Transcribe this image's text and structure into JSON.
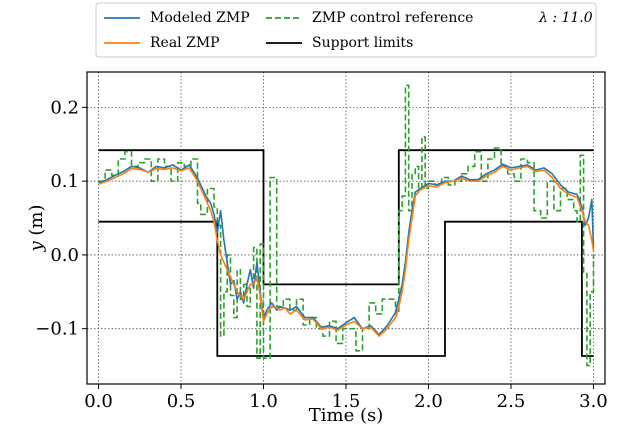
{
  "chart_data": {
    "type": "line",
    "xlabel": "Time (s)",
    "ylabel_var": "y",
    "ylabel_unit": " (m)",
    "xlim": [
      -0.07,
      3.07
    ],
    "ylim": [
      -0.175,
      0.248
    ],
    "xticks": [
      0.0,
      0.5,
      1.0,
      1.5,
      2.0,
      2.5,
      3.0
    ],
    "xtick_labels": [
      "0.0",
      "0.5",
      "1.0",
      "1.5",
      "2.0",
      "2.5",
      "3.0"
    ],
    "yticks": [
      -0.1,
      0.0,
      0.1,
      0.2
    ],
    "ytick_labels": [
      "−0.1",
      "0.0",
      "0.1",
      "0.2"
    ],
    "grid": true,
    "legend_position": "top",
    "annotation": "λ : 11.0",
    "series": [
      {
        "name": "Modeled ZMP",
        "color": "#1f77b4",
        "style": "solid",
        "x": [
          0.0,
          0.05,
          0.1,
          0.15,
          0.2,
          0.25,
          0.3,
          0.35,
          0.4,
          0.45,
          0.5,
          0.55,
          0.6,
          0.65,
          0.68,
          0.7,
          0.72,
          0.74,
          0.76,
          0.78,
          0.8,
          0.82,
          0.84,
          0.86,
          0.88,
          0.9,
          0.92,
          0.94,
          0.96,
          0.98,
          1.0,
          1.02,
          1.05,
          1.08,
          1.1,
          1.13,
          1.16,
          1.2,
          1.25,
          1.3,
          1.35,
          1.4,
          1.45,
          1.5,
          1.55,
          1.6,
          1.65,
          1.7,
          1.75,
          1.8,
          1.82,
          1.84,
          1.86,
          1.88,
          1.9,
          1.92,
          1.95,
          2.0,
          2.05,
          2.1,
          2.15,
          2.2,
          2.25,
          2.3,
          2.35,
          2.4,
          2.45,
          2.5,
          2.55,
          2.6,
          2.65,
          2.7,
          2.75,
          2.8,
          2.85,
          2.9,
          2.93,
          2.95,
          2.97,
          2.99,
          3.0
        ],
        "y": [
          0.098,
          0.102,
          0.108,
          0.113,
          0.12,
          0.118,
          0.112,
          0.12,
          0.118,
          0.122,
          0.115,
          0.122,
          0.104,
          0.08,
          0.07,
          0.055,
          0.03,
          0.06,
          0.02,
          -0.01,
          -0.04,
          -0.035,
          -0.06,
          -0.05,
          -0.065,
          -0.04,
          -0.02,
          -0.045,
          -0.01,
          -0.05,
          -0.085,
          -0.075,
          -0.065,
          -0.075,
          -0.07,
          -0.072,
          -0.075,
          -0.07,
          -0.085,
          -0.085,
          -0.098,
          -0.096,
          -0.1,
          -0.092,
          -0.085,
          -0.1,
          -0.096,
          -0.108,
          -0.096,
          -0.078,
          -0.06,
          -0.04,
          -0.01,
          0.03,
          0.06,
          0.085,
          0.09,
          0.097,
          0.095,
          0.1,
          0.1,
          0.107,
          0.102,
          0.102,
          0.11,
          0.115,
          0.123,
          0.118,
          0.12,
          0.122,
          0.115,
          0.118,
          0.11,
          0.095,
          0.085,
          0.082,
          0.065,
          0.04,
          0.05,
          0.075,
          0.01
        ]
      },
      {
        "name": "Real ZMP",
        "color": "#ff7f0e",
        "style": "solid",
        "x": [
          0.0,
          0.05,
          0.1,
          0.15,
          0.2,
          0.25,
          0.3,
          0.35,
          0.4,
          0.45,
          0.5,
          0.55,
          0.6,
          0.65,
          0.68,
          0.7,
          0.72,
          0.74,
          0.76,
          0.78,
          0.8,
          0.82,
          0.84,
          0.86,
          0.88,
          0.9,
          0.92,
          0.94,
          0.96,
          0.98,
          1.0,
          1.02,
          1.05,
          1.08,
          1.1,
          1.13,
          1.16,
          1.2,
          1.25,
          1.3,
          1.35,
          1.4,
          1.45,
          1.5,
          1.55,
          1.6,
          1.65,
          1.7,
          1.75,
          1.8,
          1.82,
          1.84,
          1.86,
          1.88,
          1.9,
          1.92,
          1.95,
          2.0,
          2.05,
          2.1,
          2.15,
          2.2,
          2.25,
          2.3,
          2.35,
          2.4,
          2.45,
          2.5,
          2.55,
          2.6,
          2.65,
          2.7,
          2.75,
          2.8,
          2.85,
          2.9,
          2.93,
          2.95,
          2.97,
          2.99,
          3.0
        ],
        "y": [
          0.096,
          0.1,
          0.105,
          0.11,
          0.117,
          0.116,
          0.112,
          0.117,
          0.116,
          0.118,
          0.114,
          0.118,
          0.1,
          0.075,
          0.06,
          0.045,
          0.02,
          0.0,
          -0.01,
          -0.02,
          -0.03,
          -0.04,
          -0.05,
          -0.055,
          -0.06,
          -0.05,
          -0.04,
          -0.04,
          -0.03,
          -0.055,
          -0.09,
          -0.08,
          -0.07,
          -0.072,
          -0.075,
          -0.072,
          -0.08,
          -0.075,
          -0.088,
          -0.087,
          -0.1,
          -0.098,
          -0.102,
          -0.095,
          -0.09,
          -0.1,
          -0.098,
          -0.11,
          -0.1,
          -0.085,
          -0.07,
          -0.05,
          -0.02,
          0.02,
          0.05,
          0.08,
          0.088,
          0.094,
          0.092,
          0.098,
          0.1,
          0.104,
          0.1,
          0.1,
          0.107,
          0.112,
          0.12,
          0.115,
          0.118,
          0.12,
          0.113,
          0.115,
          0.105,
          0.09,
          0.082,
          0.078,
          0.06,
          0.045,
          0.04,
          0.02,
          0.005
        ]
      },
      {
        "name": "ZMP control reference",
        "color": "#2ca02c",
        "style": "dashed",
        "step": true,
        "x": [
          0.0,
          0.04,
          0.08,
          0.12,
          0.16,
          0.2,
          0.24,
          0.28,
          0.32,
          0.36,
          0.4,
          0.44,
          0.48,
          0.52,
          0.56,
          0.6,
          0.62,
          0.66,
          0.7,
          0.72,
          0.74,
          0.76,
          0.78,
          0.8,
          0.82,
          0.84,
          0.86,
          0.88,
          0.9,
          0.92,
          0.94,
          0.96,
          0.98,
          1.0,
          1.04,
          1.08,
          1.12,
          1.16,
          1.2,
          1.24,
          1.28,
          1.32,
          1.36,
          1.4,
          1.44,
          1.48,
          1.52,
          1.56,
          1.6,
          1.64,
          1.68,
          1.72,
          1.76,
          1.8,
          1.82,
          1.84,
          1.86,
          1.88,
          1.9,
          1.92,
          1.94,
          1.96,
          1.98,
          2.0,
          2.04,
          2.08,
          2.12,
          2.16,
          2.2,
          2.24,
          2.28,
          2.32,
          2.36,
          2.4,
          2.44,
          2.48,
          2.52,
          2.56,
          2.6,
          2.64,
          2.68,
          2.72,
          2.76,
          2.8,
          2.84,
          2.88,
          2.9,
          2.92,
          2.94,
          2.96,
          2.98,
          3.0
        ],
        "y": [
          0.1,
          0.115,
          0.108,
          0.13,
          0.14,
          0.12,
          0.125,
          0.13,
          0.1,
          0.13,
          0.12,
          0.1,
          0.125,
          0.12,
          0.13,
          0.07,
          0.055,
          0.09,
          0.065,
          0.04,
          -0.11,
          -0.05,
          0.0,
          -0.055,
          -0.085,
          -0.02,
          -0.06,
          -0.04,
          -0.07,
          -0.04,
          0.01,
          -0.14,
          0.015,
          -0.14,
          0.105,
          -0.07,
          -0.06,
          -0.075,
          -0.06,
          -0.095,
          -0.085,
          -0.1,
          -0.11,
          -0.09,
          -0.12,
          -0.1,
          -0.1,
          -0.13,
          -0.1,
          -0.065,
          -0.08,
          -0.06,
          -0.06,
          -0.08,
          0.06,
          0.08,
          0.23,
          0.06,
          0.11,
          0.12,
          0.09,
          0.16,
          0.09,
          0.1,
          0.095,
          0.105,
          0.095,
          0.1,
          0.11,
          0.12,
          0.14,
          0.1,
          0.13,
          0.145,
          0.12,
          0.11,
          0.1,
          0.13,
          0.125,
          0.06,
          0.05,
          0.1,
          0.06,
          0.09,
          0.075,
          0.06,
          0.045,
          0.135,
          -0.025,
          -0.15,
          -0.05,
          0.0
        ]
      },
      {
        "name": "Support limits",
        "color": "#000000",
        "style": "solid",
        "x": [
          0.0,
          0.72,
          0.72,
          1.0,
          1.0,
          1.82,
          1.82,
          2.93,
          2.93,
          3.0
        ],
        "y": [
          0.142,
          0.142,
          null,
          null,
          -0.04,
          -0.04,
          0.142,
          0.142,
          null,
          null
        ]
      }
    ],
    "support_limits": {
      "upper": {
        "x": [
          0.0,
          1.0,
          1.0,
          1.82,
          1.82,
          3.0
        ],
        "y": [
          0.142,
          0.142,
          -0.04,
          -0.04,
          0.142,
          0.142
        ]
      },
      "lower": {
        "x": [
          0.0,
          0.72,
          0.72,
          2.1,
          2.1,
          2.93,
          2.93,
          3.0
        ],
        "y": [
          0.045,
          0.045,
          -0.137,
          -0.137,
          0.045,
          0.045,
          -0.137,
          -0.137
        ]
      }
    }
  }
}
